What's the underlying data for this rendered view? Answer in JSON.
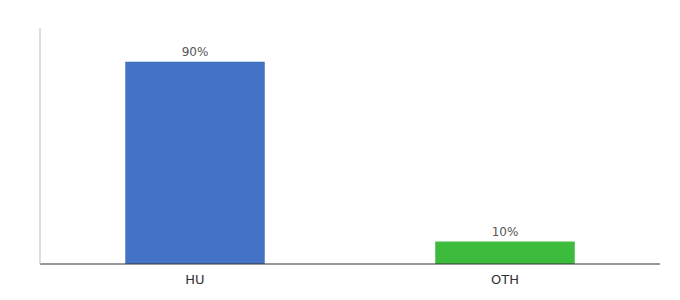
{
  "chart_data": {
    "type": "bar",
    "categories": [
      "HU",
      "OTH"
    ],
    "values": [
      90,
      10
    ],
    "colors": [
      "#4472c4",
      "#3dbb3d"
    ],
    "data_labels": true,
    "value_labels": [
      "90%",
      "10%"
    ],
    "ylim": [
      0,
      105
    ],
    "tick_labels": "x",
    "grid": false
  }
}
